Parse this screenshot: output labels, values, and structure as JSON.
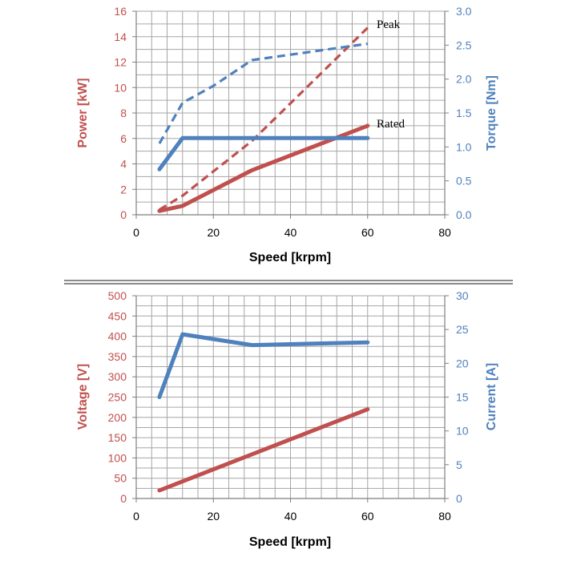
{
  "colors": {
    "red": "#c0504d",
    "blue": "#4f81bd",
    "grid": "#a6a6a6",
    "axis": "#7f7f7f",
    "text": "#000000"
  },
  "chart_data": [
    {
      "type": "line",
      "title": "",
      "xlabel": "Speed [krpm]",
      "ylabel": "Power [kW]",
      "y2label": "Torque [Nm]",
      "xlim": [
        0,
        80
      ],
      "ylim": [
        0,
        16
      ],
      "y2lim": [
        0,
        3
      ],
      "x_ticks": [
        "0",
        "20",
        "40",
        "60",
        "80"
      ],
      "y_ticks": [
        "0",
        "2",
        "4",
        "6",
        "8",
        "10",
        "12",
        "14",
        "16"
      ],
      "y2_ticks": [
        "0.0",
        "0.5",
        "1.0",
        "1.5",
        "2.0",
        "2.5",
        "3.0"
      ],
      "grid": true,
      "annotations": [
        "Peak",
        "Rated"
      ],
      "series": [
        {
          "axis": "left",
          "color": "#c0504d",
          "style": "solid",
          "x": [
            6,
            12,
            30,
            60
          ],
          "y": [
            0.3,
            0.7,
            3.5,
            7.0
          ]
        },
        {
          "axis": "left",
          "color": "#c0504d",
          "style": "dashed",
          "x": [
            6,
            12,
            30,
            60
          ],
          "y": [
            0.4,
            1.5,
            5.8,
            14.7
          ]
        },
        {
          "axis": "right",
          "color": "#4f81bd",
          "style": "solid",
          "x": [
            6,
            12,
            30,
            60
          ],
          "y": [
            0.67,
            1.13,
            1.13,
            1.13
          ]
        },
        {
          "axis": "right",
          "color": "#4f81bd",
          "style": "dashed",
          "x": [
            6,
            12,
            20,
            30,
            45,
            60
          ],
          "y": [
            1.05,
            1.65,
            1.9,
            2.28,
            2.4,
            2.52
          ]
        }
      ]
    },
    {
      "type": "line",
      "title": "",
      "xlabel": "Speed [krpm]",
      "ylabel": "Voltage [V]",
      "y2label": "Current [A]",
      "xlim": [
        0,
        80
      ],
      "ylim": [
        0,
        500
      ],
      "y2lim": [
        0,
        30
      ],
      "x_ticks": [
        "0",
        "20",
        "40",
        "60",
        "80"
      ],
      "y_ticks": [
        "0",
        "50",
        "100",
        "150",
        "200",
        "250",
        "300",
        "350",
        "400",
        "450",
        "500"
      ],
      "y2_ticks": [
        "0",
        "5",
        "10",
        "15",
        "20",
        "25",
        "30"
      ],
      "grid": true,
      "series": [
        {
          "axis": "left",
          "color": "#c0504d",
          "style": "solid",
          "x": [
            6,
            60
          ],
          "y": [
            20,
            220
          ]
        },
        {
          "axis": "right",
          "color": "#4f81bd",
          "style": "solid",
          "x": [
            6,
            12,
            30,
            60
          ],
          "y": [
            15.0,
            24.3,
            22.7,
            23.1
          ]
        }
      ]
    }
  ]
}
